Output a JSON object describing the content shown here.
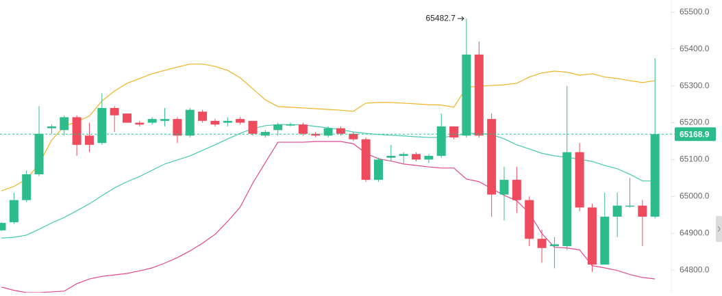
{
  "chart_data": {
    "type": "candlestick",
    "up_color": "#2dbd8c",
    "down_color": "#ef4b5e",
    "ylim": [
      64739,
      65533
    ],
    "yticks": [
      {
        "value": 64800,
        "label": "64800.0"
      },
      {
        "value": 64900,
        "label": "64900.0"
      },
      {
        "value": 65000,
        "label": "65000.0"
      },
      {
        "value": 65100,
        "label": "65100.0"
      },
      {
        "value": 65200,
        "label": "65200.0"
      },
      {
        "value": 65300,
        "label": "65300.0"
      },
      {
        "value": 65400,
        "label": "65400.0"
      },
      {
        "value": 65500,
        "label": "65500.0"
      }
    ],
    "open": [
      64908,
      64930,
      64990,
      65060,
      65185,
      65180,
      65215,
      65165,
      65145,
      65240,
      65225,
      65200,
      65200,
      65205,
      65210,
      65165,
      65230,
      65205,
      65200,
      65210,
      65205,
      65165,
      65180,
      65195,
      65195,
      65170,
      65165,
      65185,
      65170,
      65155,
      65045,
      65105,
      65110,
      65115,
      65100,
      65110,
      65190,
      65165,
      65385,
      65210,
      65005,
      65045,
      64990,
      64885,
      64865,
      64865,
      65120,
      64970,
      64815,
      64945,
      64975,
      64975,
      64945
    ],
    "high": [
      64930,
      65010,
      65070,
      65245,
      65195,
      65220,
      65220,
      65200,
      65280,
      65245,
      65225,
      65205,
      65215,
      65240,
      65215,
      65240,
      65235,
      65210,
      65215,
      65215,
      65205,
      65180,
      65200,
      65200,
      65200,
      65175,
      65190,
      65190,
      65175,
      65160,
      65105,
      65140,
      65120,
      65120,
      65115,
      65225,
      65190,
      65482.7,
      65420,
      65225,
      65080,
      65080,
      65000,
      64910,
      64890,
      65300,
      65145,
      64980,
      65010,
      65010,
      65050,
      64990,
      65375
    ],
    "low": [
      64905,
      64925,
      64985,
      65055,
      65170,
      65165,
      65110,
      65120,
      65140,
      65175,
      65200,
      65190,
      65195,
      65190,
      65145,
      65160,
      65200,
      65190,
      65190,
      65195,
      65165,
      65160,
      65165,
      65190,
      65165,
      65160,
      65160,
      65165,
      65150,
      65040,
      65040,
      65095,
      65090,
      65095,
      65090,
      65105,
      65155,
      65160,
      65160,
      64945,
      64935,
      64955,
      64865,
      64820,
      64805,
      64855,
      64960,
      64795,
      64815,
      64890,
      64970,
      64865,
      64940
    ],
    "close": [
      64928,
      64990,
      65060,
      65170,
      65190,
      65215,
      65140,
      65140,
      65240,
      65220,
      65200,
      65195,
      65210,
      65210,
      65165,
      65235,
      65205,
      65195,
      65205,
      65200,
      65170,
      65175,
      65195,
      65195,
      65170,
      65165,
      65185,
      65170,
      65155,
      65045,
      65100,
      65110,
      65115,
      65100,
      65110,
      65190,
      65160,
      65385,
      65165,
      65005,
      65045,
      64990,
      64885,
      64860,
      64870,
      65120,
      64970,
      64815,
      64945,
      64975,
      64975,
      64945,
      65168.9
    ],
    "lines": [
      {
        "color": "#f0b323",
        "values": [
          65015,
          65027,
          65047,
          65088,
          65153,
          65190,
          65203,
          65218,
          65259,
          65286,
          65307,
          65320,
          65333,
          65342,
          65351,
          65359,
          65359,
          65353,
          65342,
          65322,
          65292,
          65262,
          65244,
          65242,
          65240,
          65238,
          65236,
          65234,
          65231,
          65253,
          65255,
          65255,
          65253,
          65251,
          65249,
          65248,
          65242,
          65296,
          65299,
          65301,
          65303,
          65307,
          65324,
          65335,
          65340,
          65337,
          65329,
          65333,
          65324,
          65320,
          65314,
          65309,
          65314
        ]
      },
      {
        "color": "#45c9b0",
        "values": [
          64887,
          64889,
          64895,
          64911,
          64928,
          64943,
          64961,
          64980,
          65002,
          65023,
          65040,
          65054,
          65071,
          65088,
          65099,
          65110,
          65125,
          65140,
          65156,
          65171,
          65184,
          65192,
          65195,
          65195,
          65194,
          65190,
          65186,
          65181,
          65175,
          65171,
          65168,
          65166,
          65164,
          65162,
          65160,
          65160,
          65164,
          65171,
          65171,
          65168,
          65156,
          65140,
          65129,
          65117,
          65110,
          65106,
          65101,
          65095,
          65084,
          65075,
          65060,
          65042,
          65042
        ]
      },
      {
        "color": "#e0468f",
        "values": [
          64754,
          64745,
          64739,
          64739,
          64741,
          64743,
          64763,
          64776,
          64783,
          64787,
          64791,
          64798,
          64806,
          64819,
          64834,
          64852,
          64873,
          64897,
          64932,
          64971,
          65036,
          65092,
          65147,
          65147,
          65147,
          65149,
          65149,
          65149,
          65143,
          65117,
          65102,
          65096,
          65088,
          65084,
          65080,
          65077,
          65077,
          65047,
          65040,
          65021,
          65003,
          64988,
          64955,
          64899,
          64862,
          64860,
          64855,
          64812,
          64806,
          64799,
          64788,
          64780,
          64776
        ]
      }
    ],
    "last_price": 65168.9,
    "max_label": 65482.7
  }
}
